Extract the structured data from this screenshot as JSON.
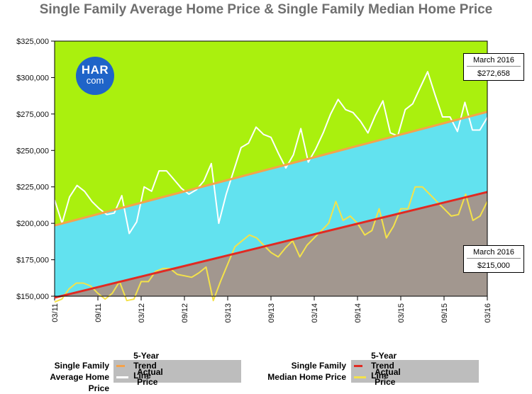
{
  "chart_data": {
    "type": "line",
    "title": "Single Family Average Home Price & Single Family Median Home Price",
    "x_tick_labels": [
      "03/11",
      "09/11",
      "03/12",
      "09/12",
      "03/13",
      "09/13",
      "03/14",
      "09/14",
      "03/15",
      "09/15",
      "03/16"
    ],
    "x_range": [
      "03/11",
      "03/16"
    ],
    "ylim": [
      150000,
      325000
    ],
    "y_ticks": [
      150000,
      175000,
      200000,
      225000,
      250000,
      275000,
      300000,
      325000
    ],
    "y_tick_labels": [
      "$150,000",
      "$175,000",
      "$200,000",
      "$225,000",
      "$250,000",
      "$275,000",
      "$300,000",
      "$325,000"
    ],
    "grid": false,
    "series": [
      {
        "name": "Actual Price",
        "group": "Single Family Average Home Price",
        "color": "#ffffff",
        "values": [
          216000,
          200000,
          218000,
          226000,
          222000,
          215000,
          210000,
          206000,
          207000,
          219000,
          193000,
          201000,
          225000,
          222000,
          236000,
          236000,
          230000,
          224000,
          220000,
          223000,
          229000,
          241000,
          200000,
          220000,
          236000,
          252000,
          255000,
          266000,
          261000,
          259000,
          248000,
          238000,
          247000,
          265000,
          242000,
          251000,
          262000,
          275000,
          285000,
          278000,
          276000,
          270000,
          262000,
          274000,
          284000,
          262000,
          260000,
          278000,
          282000,
          293000,
          304000,
          288000,
          273000,
          273000,
          263000,
          283000,
          264000,
          264000,
          272658
        ]
      },
      {
        "name": "5-Year Trend Line",
        "group": "Single Family Average Home Price",
        "color": "#f5a24a",
        "values": [
          198500,
          276500
        ]
      },
      {
        "name": "Actual Price",
        "group": "Single Family Median Home Price",
        "color": "#f4e24a",
        "values": [
          146000,
          148000,
          155000,
          159000,
          159000,
          157000,
          152000,
          148000,
          152000,
          160000,
          147000,
          148000,
          160000,
          160000,
          167000,
          169000,
          169000,
          165000,
          164000,
          163000,
          166000,
          170000,
          147000,
          160000,
          172000,
          184000,
          188000,
          192000,
          190000,
          185000,
          180000,
          177000,
          183000,
          188000,
          177000,
          185000,
          190000,
          195000,
          200000,
          215000,
          202000,
          205000,
          200000,
          192000,
          195000,
          210000,
          190000,
          198000,
          210000,
          210000,
          225000,
          225000,
          220000,
          215000,
          210000,
          205000,
          206000,
          220000,
          202000,
          205000,
          215000
        ]
      },
      {
        "name": "5-Year Trend Line",
        "group": "Single Family Median Home Price",
        "color": "#e12a22",
        "values": [
          149000,
          221500
        ]
      }
    ],
    "callouts": [
      {
        "series": "Single Family Average Home Price",
        "label": "March 2016",
        "value": "$272,658"
      },
      {
        "series": "Single Family Median Home Price",
        "label": "March 2016",
        "value": "$215,000"
      }
    ],
    "fills": {
      "above_average_trend": "#aaf00e",
      "between_trends": "#62e2ef",
      "below_median_trend": "#a2978f"
    },
    "legend": [
      {
        "group_label": "Single Family Average Home Price",
        "group_label_lines": [
          "Single Family",
          "Average Home Price"
        ],
        "items": [
          {
            "label": "5-Year Trend Line",
            "color": "#f5a24a"
          },
          {
            "label": "Actual Price",
            "color": "#ffffff"
          }
        ]
      },
      {
        "group_label": "Single Family Median Home Price",
        "group_label_lines": [
          "Single Family",
          "Median Home Price"
        ],
        "items": [
          {
            "label": "5-Year Trend Line",
            "color": "#e12a22"
          },
          {
            "label": "Actual Price",
            "color": "#f4e24a"
          }
        ]
      }
    ],
    "legend_placement": "bottom"
  },
  "logo": {
    "line1": "HAR",
    "line2": "com"
  }
}
